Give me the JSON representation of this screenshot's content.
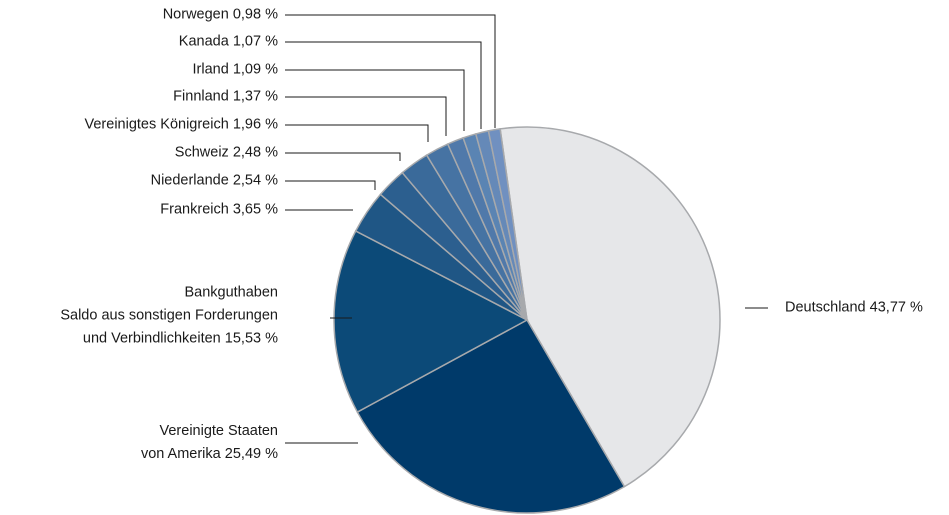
{
  "chart_data": {
    "type": "pie",
    "categories": [
      "Deutschland",
      "Vereinigte Staaten\nvon Amerika",
      "Bankguthaben\nSaldo aus sonstigen Forderungen\nund Verbindlichkeiten",
      "Frankreich",
      "Niederlande",
      "Schweiz",
      "Vereinigtes Königreich",
      "Finnland",
      "Irland",
      "Kanada",
      "Norwegen"
    ],
    "values": [
      43.77,
      25.49,
      15.53,
      3.65,
      2.54,
      2.48,
      1.96,
      1.37,
      1.09,
      1.07,
      0.98
    ],
    "value_labels": [
      "43,77 %",
      "25,49 %",
      "15,53 %",
      "3,65 %",
      "2,54 %",
      "2,48 %",
      "1,96 %",
      "1,37 %",
      "1,09 %",
      "1,07 %",
      "0,98 %"
    ],
    "colors": [
      "#e6e7e9",
      "#003a6a",
      "#0c4a78",
      "#1f5685",
      "#2c5f8f",
      "#3a6a9a",
      "#4673a3",
      "#5079aa",
      "#5a84b3",
      "#6589b8",
      "#7090c0"
    ]
  }
}
